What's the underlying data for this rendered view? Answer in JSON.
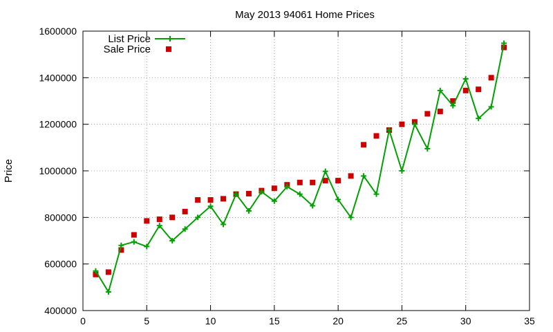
{
  "chart_data": {
    "type": "line",
    "title": "May 2013 94061 Home Prices",
    "xlabel": "",
    "ylabel": "Price",
    "xlim": [
      0,
      35
    ],
    "ylim": [
      400000,
      1600000
    ],
    "xticks": [
      0,
      5,
      10,
      15,
      20,
      25,
      30,
      35
    ],
    "yticks": [
      400000,
      600000,
      800000,
      1000000,
      1200000,
      1400000,
      1600000
    ],
    "grid": true,
    "legend_position": "top-left",
    "x": [
      1,
      2,
      3,
      4,
      5,
      6,
      7,
      8,
      9,
      10,
      11,
      12,
      13,
      14,
      15,
      16,
      17,
      18,
      19,
      20,
      21,
      22,
      23,
      24,
      25,
      26,
      27,
      28,
      29,
      30,
      31,
      32,
      33
    ],
    "series": [
      {
        "name": "List Price",
        "style": "line-with-plus-markers",
        "color": "#00a000",
        "values": [
          570000,
          480000,
          680000,
          695000,
          675000,
          765000,
          700000,
          750000,
          800000,
          848000,
          770000,
          900000,
          828000,
          910000,
          870000,
          932000,
          900000,
          850000,
          998000,
          877000,
          800000,
          978000,
          900000,
          1175000,
          1000000,
          1200000,
          1095000,
          1345000,
          1280000,
          1395000,
          1225000,
          1275000,
          1548000
        ]
      },
      {
        "name": "Sale Price",
        "style": "square-markers",
        "color": "#cc0000",
        "values": [
          555000,
          565000,
          660000,
          725000,
          785000,
          792000,
          800000,
          825000,
          875000,
          875000,
          880000,
          900000,
          902000,
          915000,
          925000,
          940000,
          950000,
          950000,
          958000,
          958000,
          978000,
          1112000,
          1150000,
          1175000,
          1200000,
          1210000,
          1245000,
          1255000,
          1300000,
          1345000,
          1350000,
          1400000,
          1530000
        ]
      }
    ]
  }
}
